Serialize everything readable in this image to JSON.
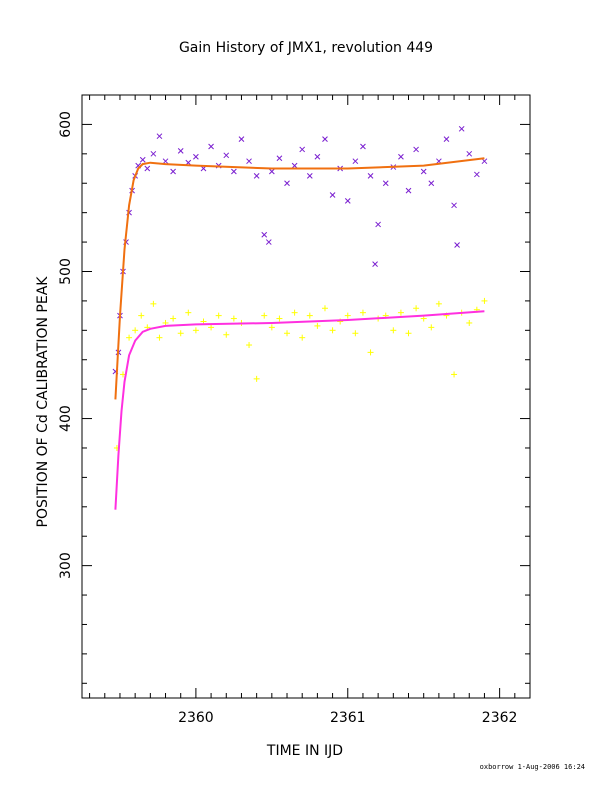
{
  "chart_data": {
    "type": "scatter",
    "title": "Gain History of JMX1, revolution 449",
    "xlabel": "TIME IN IJD",
    "ylabel": "POSITION OF Cd CALIBRATION PEAK",
    "xlim": [
      2359.25,
      2362.2
    ],
    "ylim": [
      210,
      620
    ],
    "xticks": [
      2360,
      2361,
      2362
    ],
    "xtick_labels": [
      "2360",
      "2361",
      "2362"
    ],
    "yticks": [
      300,
      400,
      500,
      600
    ],
    "ytick_labels": [
      "300",
      "400",
      "500",
      "600"
    ],
    "grid": false,
    "legend": "none",
    "series": [
      {
        "kind": "scatter",
        "marker": "x",
        "color": "#7a1fd0",
        "x": [
          2359.47,
          2359.49,
          2359.5,
          2359.52,
          2359.54,
          2359.56,
          2359.58,
          2359.6,
          2359.62,
          2359.65,
          2359.68,
          2359.72,
          2359.76,
          2359.8,
          2359.85,
          2359.9,
          2359.95,
          2360.0,
          2360.05,
          2360.1,
          2360.15,
          2360.2,
          2360.25,
          2360.3,
          2360.35,
          2360.4,
          2360.45,
          2360.48,
          2360.5,
          2360.55,
          2360.6,
          2360.65,
          2360.7,
          2360.75,
          2360.8,
          2360.85,
          2360.9,
          2360.95,
          2361.0,
          2361.05,
          2361.1,
          2361.15,
          2361.18,
          2361.2,
          2361.25,
          2361.3,
          2361.35,
          2361.4,
          2361.45,
          2361.5,
          2361.55,
          2361.6,
          2361.65,
          2361.7,
          2361.72,
          2361.75,
          2361.8,
          2361.85,
          2361.9
        ],
        "y": [
          432,
          445,
          470,
          500,
          520,
          540,
          555,
          565,
          572,
          576,
          570,
          580,
          592,
          575,
          568,
          582,
          574,
          578,
          570,
          585,
          572,
          579,
          568,
          590,
          575,
          565,
          525,
          520,
          568,
          577,
          560,
          572,
          583,
          565,
          578,
          590,
          552,
          570,
          548,
          575,
          585,
          565,
          505,
          532,
          560,
          571,
          578,
          555,
          583,
          568,
          560,
          575,
          590,
          545,
          518,
          597,
          580,
          566,
          575
        ]
      },
      {
        "kind": "line",
        "color": "#f07010",
        "x": [
          2359.47,
          2359.5,
          2359.53,
          2359.56,
          2359.59,
          2359.62,
          2359.65,
          2359.7,
          2359.8,
          2360.0,
          2360.5,
          2361.0,
          2361.5,
          2361.9
        ],
        "y": [
          413,
          470,
          515,
          545,
          562,
          570,
          573,
          574,
          573,
          572,
          570,
          570,
          572,
          577
        ]
      },
      {
        "kind": "scatter",
        "marker": "+",
        "color": "#ffff00",
        "x": [
          2359.48,
          2359.52,
          2359.56,
          2359.6,
          2359.64,
          2359.68,
          2359.72,
          2359.76,
          2359.8,
          2359.85,
          2359.9,
          2359.95,
          2360.0,
          2360.05,
          2360.1,
          2360.15,
          2360.2,
          2360.25,
          2360.3,
          2360.35,
          2360.4,
          2360.45,
          2360.5,
          2360.55,
          2360.6,
          2360.65,
          2360.7,
          2360.75,
          2360.8,
          2360.85,
          2360.9,
          2360.95,
          2361.0,
          2361.05,
          2361.1,
          2361.15,
          2361.2,
          2361.25,
          2361.3,
          2361.35,
          2361.4,
          2361.45,
          2361.5,
          2361.55,
          2361.6,
          2361.65,
          2361.7,
          2361.75,
          2361.8,
          2361.85,
          2361.9
        ],
        "y": [
          380,
          430,
          455,
          460,
          470,
          462,
          478,
          455,
          465,
          468,
          458,
          472,
          460,
          466,
          462,
          470,
          457,
          468,
          465,
          450,
          427,
          470,
          462,
          468,
          458,
          472,
          455,
          470,
          463,
          475,
          460,
          466,
          470,
          458,
          472,
          445,
          468,
          470,
          460,
          472,
          458,
          475,
          468,
          462,
          478,
          470,
          430,
          472,
          465,
          474,
          480
        ]
      },
      {
        "kind": "line",
        "color": "#ff30e0",
        "x": [
          2359.47,
          2359.49,
          2359.51,
          2359.53,
          2359.56,
          2359.6,
          2359.65,
          2359.7,
          2359.8,
          2360.0,
          2360.5,
          2361.0,
          2361.5,
          2361.9
        ],
        "y": [
          338,
          375,
          405,
          425,
          443,
          453,
          459,
          461,
          463,
          464,
          465,
          467,
          470,
          473
        ]
      }
    ],
    "footer": "oxborrow  1-Aug-2006 16:24"
  }
}
